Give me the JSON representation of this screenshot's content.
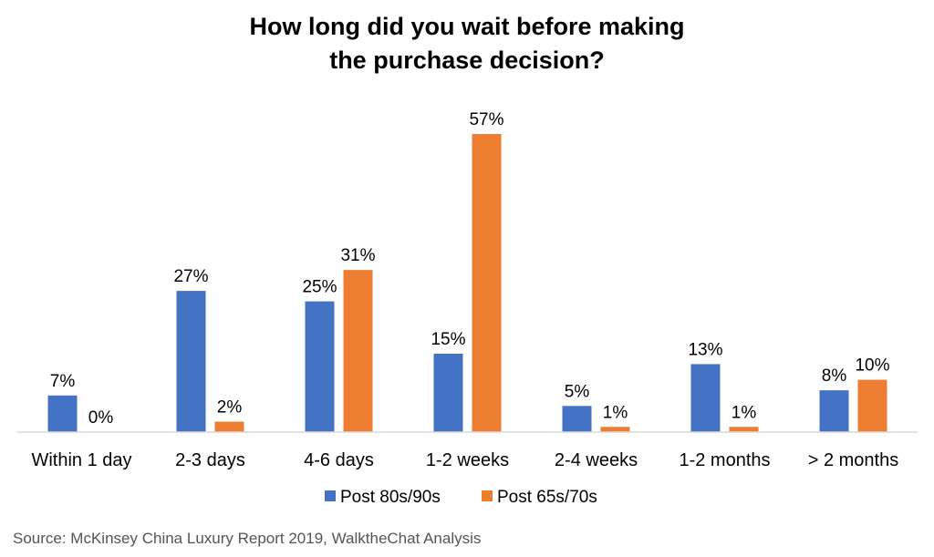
{
  "chart_data": {
    "type": "bar",
    "title": [
      "How long did you wait before making",
      "the purchase decision?"
    ],
    "categories": [
      "Within 1 day",
      "2-3 days",
      "4-6 days",
      "1-2 weeks",
      "2-4 weeks",
      "1-2 months",
      "> 2 months"
    ],
    "series": [
      {
        "name": "Post 80s/90s",
        "values": [
          7,
          27,
          25,
          15,
          5,
          13,
          8
        ],
        "labels": [
          "7%",
          "27%",
          "25%",
          "15%",
          "5%",
          "13%",
          "8%"
        ],
        "color": "#4472C4"
      },
      {
        "name": "Post 65s/70s",
        "values": [
          0,
          2,
          31,
          57,
          1,
          1,
          10
        ],
        "labels": [
          "0%",
          "2%",
          "31%",
          "57%",
          "1%",
          "1%",
          "10%"
        ],
        "color": "#ED7D31"
      }
    ],
    "ylim": [
      0,
      57
    ],
    "grid": false,
    "legend_position": "bottom"
  },
  "source": "Source: McKinsey China Luxury Report 2019, WalktheChat Analysis"
}
